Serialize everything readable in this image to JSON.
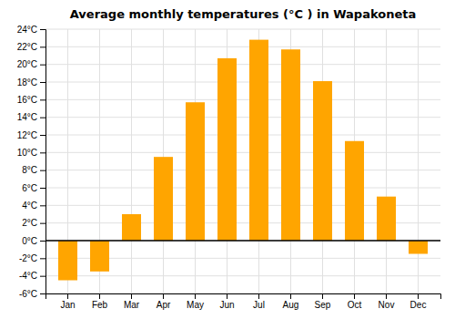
{
  "chart_data": {
    "type": "bar",
    "title": "Average monthly temperatures (°C ) in Wapakoneta",
    "categories": [
      "Jan",
      "Feb",
      "Mar",
      "Apr",
      "May",
      "Jun",
      "Jul",
      "Aug",
      "Sep",
      "Oct",
      "Nov",
      "Dec"
    ],
    "values": [
      -4.5,
      -3.5,
      3.0,
      9.5,
      15.7,
      20.7,
      22.8,
      21.7,
      18.1,
      11.3,
      5.0,
      -1.5
    ],
    "color": "#FFA500",
    "ylim": [
      -6,
      24
    ],
    "yticks": [
      {
        "value": -6,
        "label": "-6°C"
      },
      {
        "value": -4,
        "label": "-4°C"
      },
      {
        "value": -2,
        "label": "-2°C"
      },
      {
        "value": 0,
        "label": "0°C"
      },
      {
        "value": 2,
        "label": "2°C"
      },
      {
        "value": 4,
        "label": "4°C"
      },
      {
        "value": 6,
        "label": "6°C"
      },
      {
        "value": 8,
        "label": "8°C"
      },
      {
        "value": 10,
        "label": "10°C"
      },
      {
        "value": 12,
        "label": "12°C"
      },
      {
        "value": 14,
        "label": "14°C"
      },
      {
        "value": 16,
        "label": "16°C"
      },
      {
        "value": 18,
        "label": "18°C"
      },
      {
        "value": 20,
        "label": "20°C"
      },
      {
        "value": 22,
        "label": "22°C"
      },
      {
        "value": 24,
        "label": "24°C"
      }
    ],
    "grid": true
  }
}
